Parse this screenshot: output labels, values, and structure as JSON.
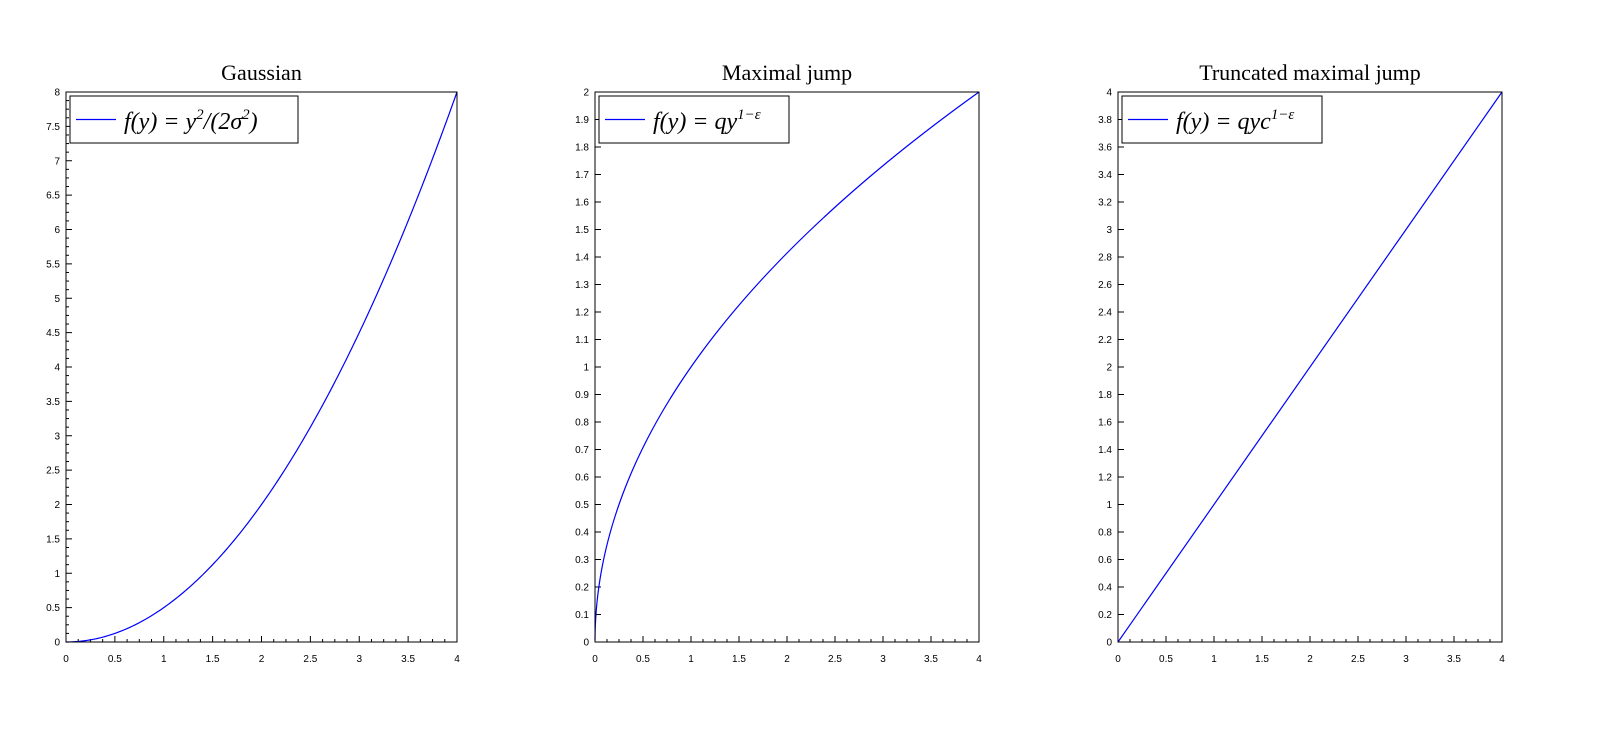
{
  "chart_data": [
    {
      "type": "line",
      "title": "Gaussian",
      "xlim": [
        0,
        4
      ],
      "ylim": [
        0,
        8
      ],
      "x_ticks": [
        "0",
        "0.5",
        "1",
        "1.5",
        "2",
        "2.5",
        "3",
        "3.5",
        "4"
      ],
      "y_ticks": [
        "0",
        "0.5",
        "1",
        "1.5",
        "2",
        "2.5",
        "3",
        "3.5",
        "4",
        "4.5",
        "5",
        "5.5",
        "6",
        "6.5",
        "7",
        "7.5",
        "8"
      ],
      "legend_placement": "top-left",
      "legend": {
        "main": "f(y) = y",
        "sup1": "2",
        "mid": "/(2σ",
        "sup2": "2",
        "tail": ")"
      },
      "series": [
        {
          "x": [
            0,
            0.25,
            0.5,
            0.75,
            1,
            1.25,
            1.5,
            1.75,
            2,
            2.25,
            2.5,
            2.75,
            3,
            3.25,
            3.5,
            3.75,
            4
          ],
          "y": [
            0,
            0.03125,
            0.125,
            0.28125,
            0.5,
            0.78125,
            1.125,
            1.53125,
            2,
            2.53125,
            3.125,
            3.78125,
            4.5,
            5.28125,
            6.125,
            7.03125,
            8
          ],
          "color": "#0000ff"
        }
      ]
    },
    {
      "type": "line",
      "title": "Maximal jump",
      "xlim": [
        0,
        4
      ],
      "ylim": [
        0,
        2
      ],
      "x_ticks": [
        "0",
        "0.5",
        "1",
        "1.5",
        "2",
        "2.5",
        "3",
        "3.5",
        "4"
      ],
      "y_ticks": [
        "0",
        "0.1",
        "0.2",
        "0.3",
        "0.4",
        "0.5",
        "0.6",
        "0.7",
        "0.8",
        "0.9",
        "1",
        "1.1",
        "1.2",
        "1.3",
        "1.4",
        "1.5",
        "1.6",
        "1.7",
        "1.8",
        "1.9",
        "2"
      ],
      "legend_placement": "top-left",
      "legend": {
        "main": "f(y) = qy",
        "sup1": "1−ε",
        "mid": "",
        "sup2": "",
        "tail": ""
      },
      "series": [
        {
          "x": [
            0.005,
            0.02,
            0.05,
            0.1,
            0.2,
            0.3,
            0.5,
            0.75,
            1,
            1.25,
            1.5,
            2,
            2.5,
            3,
            3.5,
            4
          ],
          "y": [
            0.07,
            0.14,
            0.22,
            0.32,
            0.45,
            0.55,
            0.71,
            0.87,
            1.0,
            1.12,
            1.22,
            1.41,
            1.58,
            1.73,
            1.87,
            2.0
          ],
          "color": "#0000ff"
        }
      ]
    },
    {
      "type": "line",
      "title": "Truncated maximal jump",
      "xlim": [
        0,
        4
      ],
      "ylim": [
        0,
        4
      ],
      "x_ticks": [
        "0",
        "0.5",
        "1",
        "1.5",
        "2",
        "2.5",
        "3",
        "3.5",
        "4"
      ],
      "y_ticks": [
        "0",
        "0.2",
        "0.4",
        "0.6",
        "0.8",
        "1",
        "1.2",
        "1.4",
        "1.6",
        "1.8",
        "2",
        "2.2",
        "2.4",
        "2.6",
        "2.8",
        "3",
        "3.2",
        "3.4",
        "3.6",
        "3.8",
        "4"
      ],
      "legend_placement": "top-left",
      "legend": {
        "main": "f(y) = qyc",
        "sup1": "1−ε",
        "mid": "",
        "sup2": "",
        "tail": ""
      },
      "series": [
        {
          "x": [
            0,
            4
          ],
          "y": [
            0,
            4
          ],
          "color": "#0000ff"
        }
      ]
    }
  ]
}
